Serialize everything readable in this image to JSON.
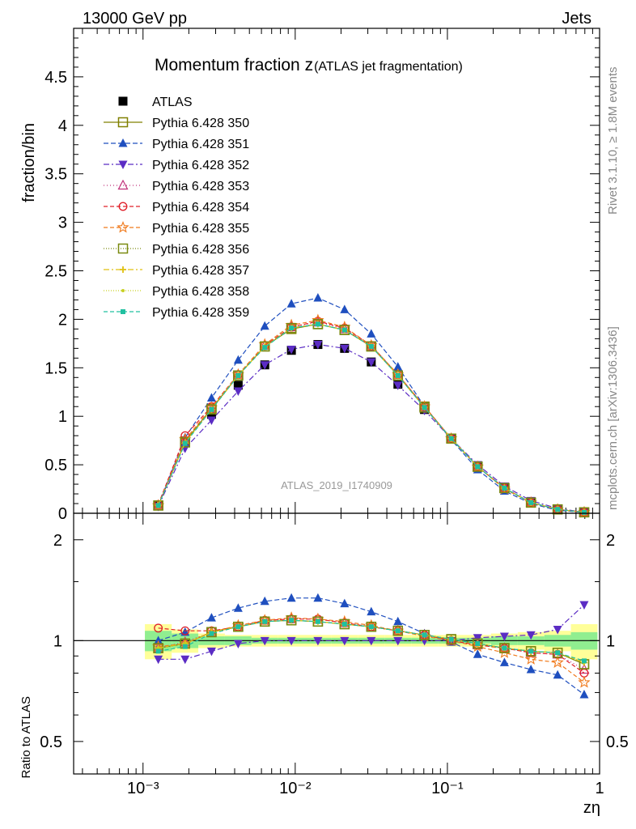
{
  "header": {
    "left": "13000 GeV pp",
    "right": "Jets"
  },
  "side_texts": {
    "rivet": "Rivet 3.1.10, ≥ 1.8M events",
    "source": "mcplots.cern.ch [arXiv:1306.3436]"
  },
  "colors": {
    "ATLAS": "#000000",
    "350": "#808000",
    "351": "#1f4fbf",
    "352": "#5b2cc4",
    "353": "#c0307a",
    "354": "#e0202a",
    "355": "#f07a1c",
    "356": "#7a8a10",
    "357": "#e0c010",
    "358": "#c8d020",
    "359": "#20c0a0",
    "band_inner": "#90ee90",
    "band_outer": "#ffff99"
  },
  "chart_data": [
    {
      "type": "scatter",
      "title": "Momentum fraction z",
      "title_suffix": "(ATLAS jet fragmentation)",
      "ylabel": "fraction/bin",
      "xlabel": "zη",
      "xscale": "log",
      "xlim": [
        0.00035,
        1.0
      ],
      "ylim": [
        0,
        5
      ],
      "yticks": [
        "0",
        "0.5",
        "1",
        "1.5",
        "2",
        "2.5",
        "3",
        "3.5",
        "4",
        "4.5"
      ],
      "xticks": [
        "10⁻³",
        "10⁻²",
        "10⁻¹",
        "1"
      ],
      "watermark": "ATLAS_2019_I1740909",
      "x": [
        0.00126,
        0.00189,
        0.00282,
        0.00422,
        0.00631,
        0.00944,
        0.0141,
        0.0211,
        0.0316,
        0.0473,
        0.0707,
        0.106,
        0.158,
        0.237,
        0.354,
        0.53,
        0.792
      ],
      "series": [
        {
          "name": "ATLAS",
          "key": "ATLAS",
          "marker": "square-filled",
          "dash": "none",
          "values": [
            0.08,
            0.74,
            1.02,
            1.32,
            1.53,
            1.68,
            1.74,
            1.7,
            1.56,
            1.33,
            1.07,
            0.77,
            0.49,
            0.27,
            0.12,
            0.04,
            0.01
          ]
        },
        {
          "name": "Pythia 6.428 350",
          "key": "350",
          "marker": "square-open",
          "dash": "solid",
          "values": [
            0.08,
            0.74,
            1.08,
            1.42,
            1.72,
            1.9,
            1.95,
            1.89,
            1.72,
            1.42,
            1.1,
            0.77,
            0.48,
            0.26,
            0.11,
            0.04,
            0.01
          ]
        },
        {
          "name": "Pythia 6.428 351",
          "key": "351",
          "marker": "triangle-up-filled",
          "dash": "6,3",
          "values": [
            0.08,
            0.78,
            1.19,
            1.58,
            1.93,
            2.16,
            2.22,
            2.1,
            1.85,
            1.51,
            1.1,
            0.76,
            0.45,
            0.23,
            0.1,
            0.03,
            0.01
          ]
        },
        {
          "name": "Pythia 6.428 352",
          "key": "352",
          "marker": "triangle-down-filled",
          "dash": "7,3,2,3",
          "values": [
            0.07,
            0.67,
            0.96,
            1.26,
            1.53,
            1.69,
            1.74,
            1.7,
            1.56,
            1.32,
            1.06,
            0.77,
            0.5,
            0.28,
            0.13,
            0.05,
            0.01
          ]
        },
        {
          "name": "Pythia 6.428 353",
          "key": "353",
          "marker": "triangle-up-open",
          "dash": "1,3",
          "values": [
            0.08,
            0.76,
            1.08,
            1.43,
            1.73,
            1.92,
            1.97,
            1.9,
            1.72,
            1.43,
            1.1,
            0.77,
            0.48,
            0.26,
            0.11,
            0.04,
            0.01
          ]
        },
        {
          "name": "Pythia 6.428 354",
          "key": "354",
          "marker": "circle-open",
          "dash": "5,3",
          "values": [
            0.09,
            0.8,
            1.1,
            1.43,
            1.73,
            1.92,
            1.98,
            1.91,
            1.73,
            1.43,
            1.1,
            0.77,
            0.48,
            0.26,
            0.11,
            0.04,
            0.01
          ]
        },
        {
          "name": "Pythia 6.428 355",
          "key": "355",
          "marker": "star-open",
          "dash": "5,3",
          "values": [
            0.08,
            0.76,
            1.09,
            1.43,
            1.74,
            1.94,
            1.99,
            1.92,
            1.73,
            1.43,
            1.1,
            0.77,
            0.48,
            0.25,
            0.11,
            0.04,
            0.01
          ]
        },
        {
          "name": "Pythia 6.428 356",
          "key": "356",
          "marker": "square-open",
          "dash": "1,2",
          "values": [
            0.08,
            0.73,
            1.07,
            1.42,
            1.72,
            1.91,
            1.95,
            1.89,
            1.72,
            1.42,
            1.09,
            0.77,
            0.48,
            0.26,
            0.11,
            0.04,
            0.01
          ]
        },
        {
          "name": "Pythia 6.428 357",
          "key": "357",
          "marker": "plus-dot",
          "dash": "7,3,2,3",
          "values": [
            0.08,
            0.73,
            1.07,
            1.42,
            1.72,
            1.91,
            1.95,
            1.89,
            1.72,
            1.42,
            1.09,
            0.77,
            0.48,
            0.26,
            0.11,
            0.04,
            0.01
          ]
        },
        {
          "name": "Pythia 6.428 358",
          "key": "358",
          "marker": "dot",
          "dash": "1,2",
          "values": [
            0.08,
            0.73,
            1.07,
            1.42,
            1.72,
            1.91,
            1.95,
            1.89,
            1.72,
            1.42,
            1.09,
            0.77,
            0.48,
            0.26,
            0.11,
            0.04,
            0.01
          ]
        },
        {
          "name": "Pythia 6.428 359",
          "key": "359",
          "marker": "square-small-filled",
          "dash": "5,3",
          "values": [
            0.08,
            0.72,
            1.07,
            1.42,
            1.71,
            1.91,
            1.95,
            1.89,
            1.72,
            1.42,
            1.09,
            0.77,
            0.48,
            0.26,
            0.11,
            0.04,
            0.01
          ]
        }
      ]
    },
    {
      "type": "scatter",
      "title": "",
      "ylabel": "Ratio to ATLAS",
      "xlabel": "zη",
      "xscale": "log",
      "yscale": "log",
      "xlim": [
        0.00035,
        1.0
      ],
      "ylim": [
        0.4,
        2.4
      ],
      "yticks": [
        "0.5",
        "1",
        "2"
      ],
      "reference_line": 1,
      "band_inner": [
        0.07,
        0.05,
        0.03,
        0.03,
        0.02,
        0.02,
        0.02,
        0.02,
        0.02,
        0.02,
        0.02,
        0.02,
        0.02,
        0.03,
        0.03,
        0.04,
        0.06
      ],
      "band_outer": [
        0.12,
        0.08,
        0.05,
        0.04,
        0.04,
        0.04,
        0.04,
        0.04,
        0.04,
        0.04,
        0.04,
        0.04,
        0.04,
        0.05,
        0.06,
        0.07,
        0.12
      ],
      "x": [
        0.00126,
        0.00189,
        0.00282,
        0.00422,
        0.00631,
        0.00944,
        0.0141,
        0.0211,
        0.0316,
        0.0473,
        0.0707,
        0.106,
        0.158,
        0.237,
        0.354,
        0.53,
        0.792
      ],
      "series": [
        {
          "name": "Pythia 6.428 350",
          "key": "350",
          "marker": "square-open",
          "dash": "solid",
          "values": [
            0.95,
            0.98,
            1.06,
            1.1,
            1.14,
            1.15,
            1.14,
            1.12,
            1.1,
            1.07,
            1.04,
            1.01,
            0.98,
            0.95,
            0.93,
            0.92,
            0.85
          ]
        },
        {
          "name": "Pythia 6.428 351",
          "key": "351",
          "marker": "triangle-up-filled",
          "dash": "6,3",
          "values": [
            1.0,
            1.06,
            1.17,
            1.25,
            1.31,
            1.34,
            1.34,
            1.29,
            1.22,
            1.14,
            1.05,
            0.99,
            0.91,
            0.86,
            0.82,
            0.79,
            0.69
          ]
        },
        {
          "name": "Pythia 6.428 352",
          "key": "352",
          "marker": "triangle-down-filled",
          "dash": "7,3,2,3",
          "values": [
            0.88,
            0.88,
            0.93,
            0.98,
            1.0,
            1.0,
            1.0,
            1.0,
            1.0,
            1.0,
            1.0,
            1.0,
            1.02,
            1.03,
            1.04,
            1.08,
            1.28
          ]
        },
        {
          "name": "Pythia 6.428 353",
          "key": "353",
          "marker": "triangle-up-open",
          "dash": "1,3",
          "values": [
            0.95,
            0.99,
            1.06,
            1.1,
            1.15,
            1.16,
            1.16,
            1.13,
            1.1,
            1.07,
            1.04,
            1.0,
            0.97,
            0.95,
            0.92,
            0.91,
            0.82
          ]
        },
        {
          "name": "Pythia 6.428 354",
          "key": "354",
          "marker": "circle-open",
          "dash": "5,3",
          "values": [
            1.09,
            1.07,
            1.07,
            1.1,
            1.15,
            1.16,
            1.16,
            1.13,
            1.1,
            1.07,
            1.04,
            1.0,
            0.97,
            0.95,
            0.92,
            0.91,
            0.8
          ]
        },
        {
          "name": "Pythia 6.428 355",
          "key": "355",
          "marker": "star-open",
          "dash": "5,3",
          "values": [
            0.96,
            0.98,
            1.06,
            1.11,
            1.15,
            1.17,
            1.16,
            1.14,
            1.11,
            1.07,
            1.03,
            1.0,
            0.96,
            0.92,
            0.88,
            0.86,
            0.75
          ]
        },
        {
          "name": "Pythia 6.428 356",
          "key": "356",
          "marker": "square-open",
          "dash": "1,2",
          "values": [
            0.95,
            0.98,
            1.06,
            1.1,
            1.14,
            1.15,
            1.14,
            1.12,
            1.1,
            1.07,
            1.04,
            1.01,
            0.98,
            0.95,
            0.93,
            0.92,
            0.85
          ]
        },
        {
          "name": "Pythia 6.428 357",
          "key": "357",
          "marker": "plus-dot",
          "dash": "7,3,2,3",
          "values": [
            0.95,
            0.98,
            1.06,
            1.1,
            1.14,
            1.15,
            1.14,
            1.12,
            1.1,
            1.07,
            1.04,
            1.01,
            0.98,
            0.95,
            0.93,
            0.92,
            0.86
          ]
        },
        {
          "name": "Pythia 6.428 358",
          "key": "358",
          "marker": "dot",
          "dash": "1,2",
          "values": [
            0.95,
            0.98,
            1.06,
            1.1,
            1.14,
            1.15,
            1.14,
            1.12,
            1.1,
            1.07,
            1.04,
            1.01,
            0.98,
            0.95,
            0.93,
            0.92,
            0.86
          ]
        },
        {
          "name": "Pythia 6.428 359",
          "key": "359",
          "marker": "square-small-filled",
          "dash": "5,3",
          "values": [
            0.93,
            0.96,
            1.05,
            1.1,
            1.14,
            1.15,
            1.14,
            1.12,
            1.1,
            1.07,
            1.04,
            1.01,
            0.98,
            0.95,
            0.93,
            0.92,
            0.87
          ]
        }
      ]
    }
  ]
}
